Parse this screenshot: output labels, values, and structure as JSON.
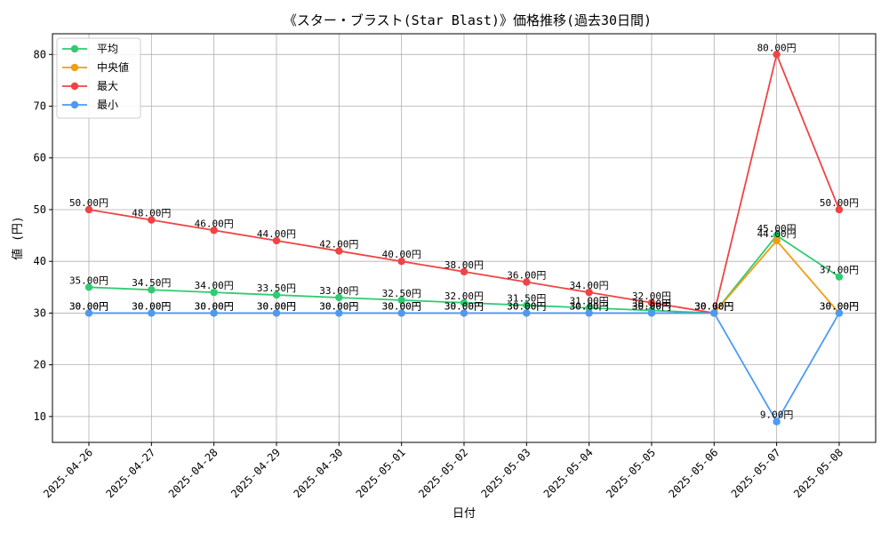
{
  "chart_data": {
    "type": "line",
    "title": "《スター・ブラスト(Star Blast)》価格推移(過去30日間)",
    "xlabel": "日付",
    "ylabel": "値 (円)",
    "ylim": [
      5,
      84
    ],
    "yticks": [
      10,
      20,
      30,
      40,
      50,
      60,
      70,
      80
    ],
    "grid": true,
    "legend_position": "top-left",
    "value_suffix": "円",
    "categories": [
      "2025-04-26",
      "2025-04-27",
      "2025-04-28",
      "2025-04-29",
      "2025-04-30",
      "2025-05-01",
      "2025-05-02",
      "2025-05-03",
      "2025-05-04",
      "2025-05-05",
      "2025-05-06",
      "2025-05-07",
      "2025-05-08"
    ],
    "series": [
      {
        "name": "平均",
        "color": "#2ecc71",
        "values": [
          35.0,
          34.5,
          34.0,
          33.5,
          33.0,
          32.5,
          32.0,
          31.5,
          31.0,
          30.5,
          30.0,
          45.0,
          37.0
        ]
      },
      {
        "name": "中央値",
        "color": "#f39c12",
        "values": [
          30.0,
          30.0,
          30.0,
          30.0,
          30.0,
          30.0,
          30.0,
          30.0,
          30.0,
          30.0,
          30.0,
          44.0,
          30.0
        ]
      },
      {
        "name": "最大",
        "color": "#ef4444",
        "values": [
          50.0,
          48.0,
          46.0,
          44.0,
          42.0,
          40.0,
          38.0,
          36.0,
          34.0,
          32.0,
          30.0,
          80.0,
          50.0
        ]
      },
      {
        "name": "最小",
        "color": "#4b9bf5",
        "values": [
          30.0,
          30.0,
          30.0,
          30.0,
          30.0,
          30.0,
          30.0,
          30.0,
          30.0,
          30.0,
          30.0,
          9.0,
          30.0
        ]
      }
    ]
  }
}
